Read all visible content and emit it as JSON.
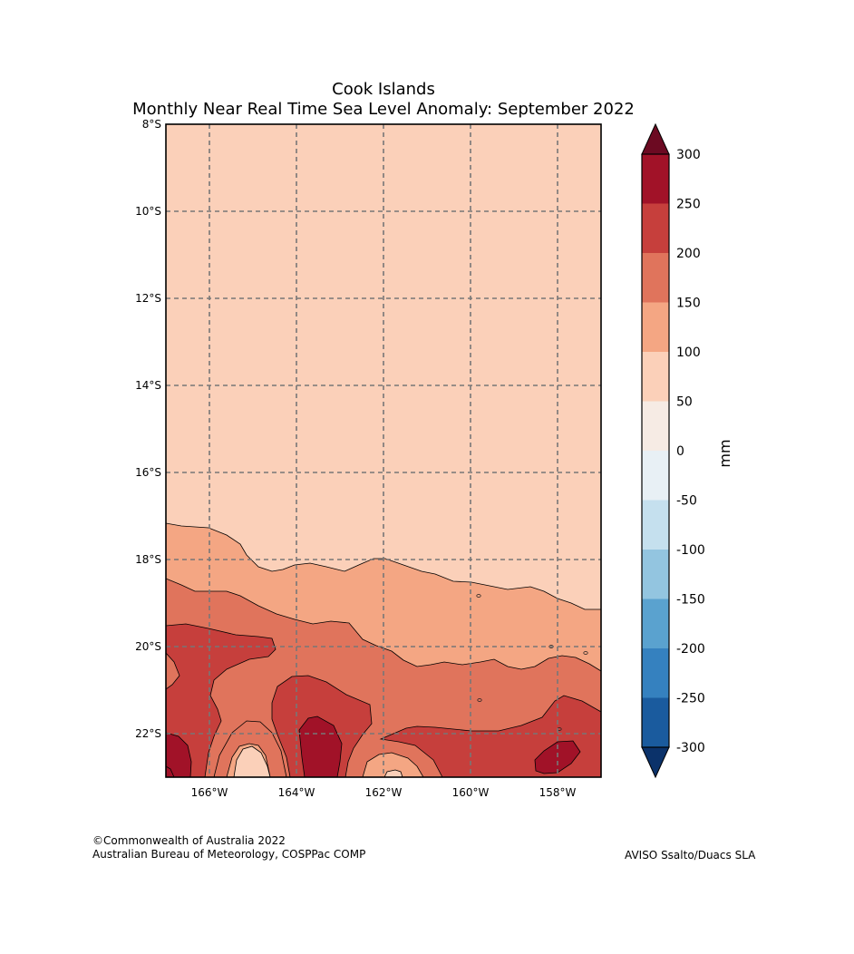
{
  "chart_data": {
    "type": "heatmap",
    "title": "Cook Islands",
    "subtitle": "Monthly Near Real Time Sea Level Anomaly: September 2022",
    "x_ticks": [
      "166°W",
      "164°W",
      "162°W",
      "160°W",
      "158°W"
    ],
    "y_ticks": [
      "8°S",
      "10°S",
      "12°S",
      "14°S",
      "16°S",
      "18°S",
      "20°S",
      "22°S"
    ],
    "xlim": [
      -167,
      -157
    ],
    "ylim": [
      -23,
      -8
    ],
    "grid": true,
    "colorbar": {
      "label": "mm",
      "levels": [
        -300,
        -250,
        -200,
        -150,
        -100,
        -50,
        0,
        50,
        100,
        150,
        200,
        250,
        300
      ],
      "tick_labels": [
        "300",
        "250",
        "200",
        "150",
        "100",
        "50",
        "0",
        "-50",
        "-100",
        "-150",
        "-200",
        "-250",
        "-300"
      ],
      "colors": [
        "#1a5b9e",
        "#3581bf",
        "#5aa2cf",
        "#93c5e0",
        "#c5e0ee",
        "#e8f0f5",
        "#f6ebe4",
        "#fbd0b9",
        "#f4a683",
        "#e0745c",
        "#c63f3c",
        "#a11228"
      ],
      "extend_low_color": "#0b326a",
      "extend_high_color": "#6c0a22"
    },
    "contour_regions": [
      {
        "level_range": [
          50,
          100
        ],
        "color": "#fbd0b9",
        "description_area": "north of ~18.5°S"
      },
      {
        "level_range": [
          100,
          150
        ],
        "color": "#f4a683",
        "description_area": "band ~17.5°S–20.5°S"
      },
      {
        "level_range": [
          150,
          200
        ],
        "color": "#e0745c",
        "description_area": "band ~18.5°S–22°S"
      },
      {
        "level_range": [
          200,
          250
        ],
        "color": "#c63f3c",
        "description_area": "south of ~20°S"
      },
      {
        "level_range": [
          250,
          300
        ],
        "color": "#a11228",
        "description_area": "patches near 163.5°W 22.5°S, 158°W 22.5°S, 167°W 22.5°S"
      }
    ]
  },
  "credits": {
    "left_line1": "©Commonwealth of Australia 2022",
    "left_line2": "Australian Bureau of Meteorology, COSPPac COMP",
    "right": "AVISO Ssalto/Duacs SLA"
  }
}
